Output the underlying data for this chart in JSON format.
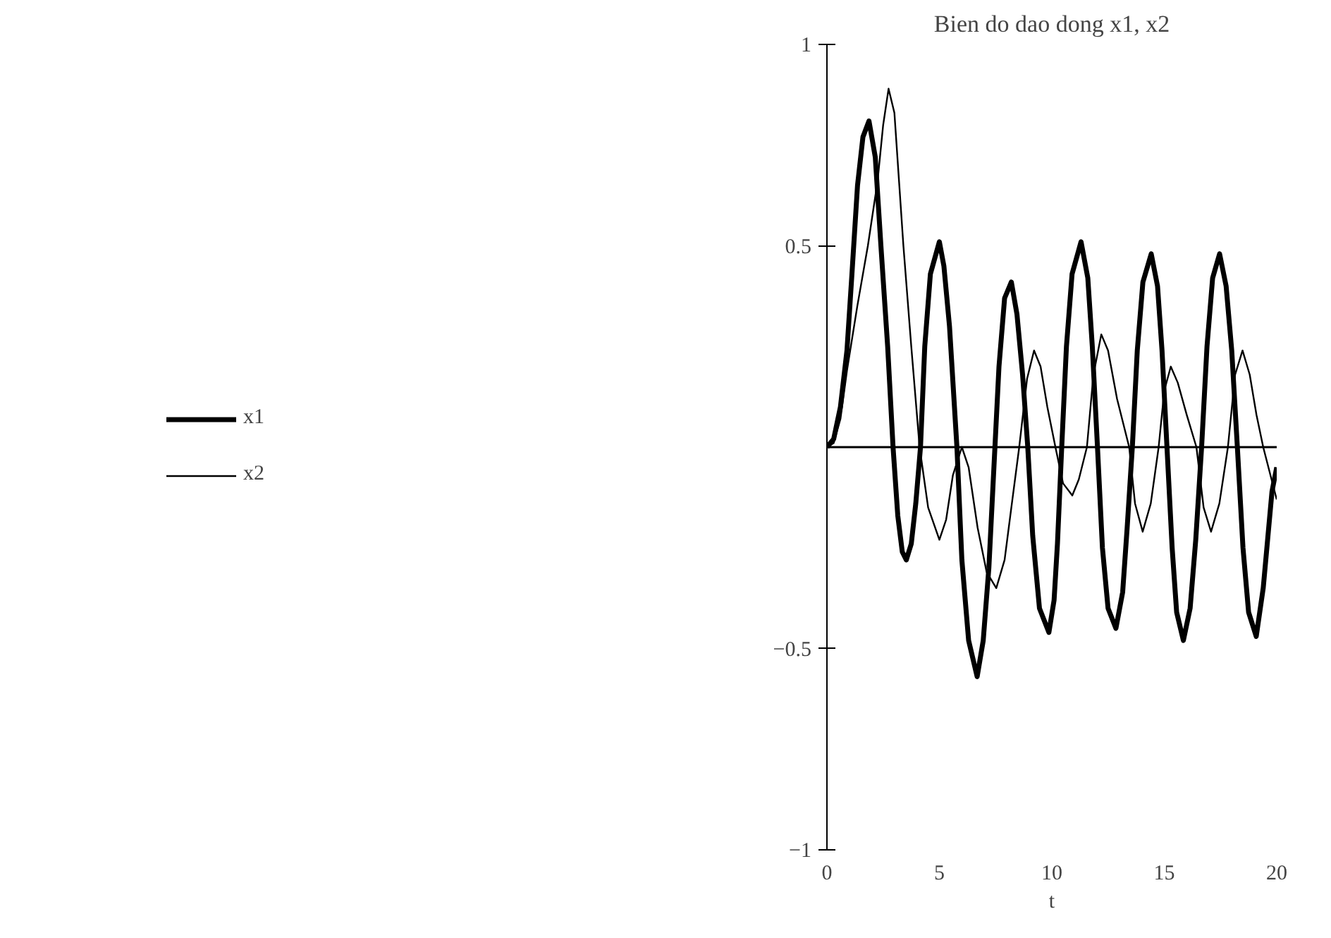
{
  "chart_data": {
    "type": "line",
    "title": "Bien do dao dong x1, x2",
    "xlabel": "t",
    "xlim": [
      0,
      20
    ],
    "ylim": [
      -1,
      1
    ],
    "xticks": [
      0,
      5,
      10,
      15,
      20
    ],
    "yticks": [
      -1,
      -0.5,
      0.5,
      1
    ],
    "grid": false,
    "legend": "left",
    "line_style": "solid",
    "marker": "none",
    "ref_lines": [
      {
        "axis": "y",
        "value": 0,
        "label": null
      }
    ],
    "series": [
      {
        "name": "x1",
        "color": "#000000",
        "x": [
          0,
          0.3,
          0.6,
          0.89,
          1.1,
          1.36,
          1.6,
          1.87,
          2.15,
          2.4,
          2.7,
          2.94,
          3.15,
          3.35,
          3.53,
          3.75,
          3.95,
          4.16,
          4.35,
          4.6,
          5.0,
          5.2,
          5.45,
          5.78,
          6.0,
          6.3,
          6.68,
          6.95,
          7.2,
          7.47,
          7.65,
          7.9,
          8.2,
          8.45,
          8.7,
          8.93,
          9.15,
          9.45,
          9.87,
          10.1,
          10.25,
          10.44,
          10.65,
          10.9,
          11.3,
          11.6,
          11.8,
          12.03,
          12.25,
          12.5,
          12.85,
          13.15,
          13.35,
          13.58,
          13.8,
          14.05,
          14.42,
          14.7,
          14.9,
          15.12,
          15.35,
          15.55,
          15.85,
          16.15,
          16.4,
          16.66,
          16.9,
          17.15,
          17.46,
          17.75,
          18.0,
          18.25,
          18.5,
          18.75,
          19.09,
          19.4,
          19.79,
          20
        ],
        "values": [
          0,
          0.02,
          0.1,
          0.24,
          0.42,
          0.65,
          0.77,
          0.81,
          0.72,
          0.5,
          0.25,
          0,
          -0.17,
          -0.26,
          -0.28,
          -0.24,
          -0.14,
          0,
          0.25,
          0.43,
          0.51,
          0.45,
          0.3,
          0,
          -0.28,
          -0.48,
          -0.57,
          -0.48,
          -0.3,
          0,
          0.2,
          0.37,
          0.41,
          0.33,
          0.18,
          0,
          -0.22,
          -0.4,
          -0.46,
          -0.38,
          -0.24,
          0,
          0.25,
          0.43,
          0.51,
          0.42,
          0.25,
          0,
          -0.25,
          -0.4,
          -0.45,
          -0.36,
          -0.2,
          0,
          0.24,
          0.41,
          0.48,
          0.4,
          0.24,
          0,
          -0.25,
          -0.41,
          -0.48,
          -0.4,
          -0.23,
          0,
          0.25,
          0.42,
          0.48,
          0.4,
          0.24,
          0,
          -0.25,
          -0.41,
          -0.47,
          -0.35,
          -0.11,
          -0.05
        ]
      },
      {
        "name": "x2",
        "color": "#000000",
        "x": [
          0,
          0.3,
          0.6,
          0.89,
          1.35,
          1.82,
          2.25,
          2.5,
          2.74,
          3.0,
          3.4,
          3.75,
          4.12,
          4.5,
          5.0,
          5.3,
          5.6,
          6.0,
          6.3,
          6.7,
          7.1,
          7.53,
          7.9,
          8.2,
          8.55,
          8.9,
          9.21,
          9.5,
          9.8,
          10.16,
          10.5,
          10.91,
          11.2,
          11.56,
          11.85,
          12.2,
          12.5,
          12.9,
          13.44,
          13.7,
          14.04,
          14.4,
          14.75,
          15.0,
          15.29,
          15.6,
          16.0,
          16.43,
          16.75,
          17.08,
          17.45,
          17.83,
          18.15,
          18.48,
          18.8,
          19.1,
          19.4,
          20
        ],
        "values": [
          0,
          0.01,
          0.07,
          0.19,
          0.35,
          0.5,
          0.66,
          0.8,
          0.89,
          0.83,
          0.5,
          0.25,
          0,
          -0.15,
          -0.23,
          -0.18,
          -0.07,
          0,
          -0.05,
          -0.2,
          -0.31,
          -0.35,
          -0.28,
          -0.15,
          0,
          0.17,
          0.24,
          0.2,
          0.1,
          0,
          -0.09,
          -0.12,
          -0.08,
          0,
          0.18,
          0.28,
          0.24,
          0.12,
          0,
          -0.14,
          -0.21,
          -0.14,
          0,
          0.14,
          0.2,
          0.16,
          0.08,
          0,
          -0.15,
          -0.21,
          -0.14,
          0,
          0.18,
          0.24,
          0.18,
          0.08,
          0,
          -0.13
        ]
      }
    ]
  }
}
